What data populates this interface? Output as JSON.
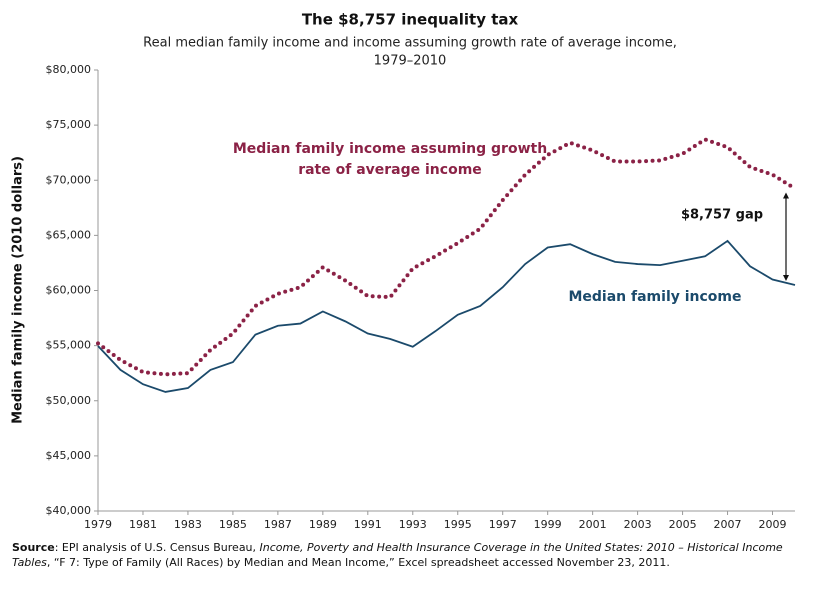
{
  "chart_data": {
    "type": "line",
    "title": "The $8,757 inequality tax",
    "subtitle": [
      "Real median family income and income assuming growth rate of average income,",
      "1979–2010"
    ],
    "y_label": "Median family income (2010 dollars)",
    "x": [
      1979,
      1980,
      1981,
      1982,
      1983,
      1984,
      1985,
      1986,
      1987,
      1988,
      1989,
      1990,
      1991,
      1992,
      1993,
      1994,
      1995,
      1996,
      1997,
      1998,
      1999,
      2000,
      2001,
      2002,
      2003,
      2004,
      2005,
      2006,
      2007,
      2008,
      2009,
      2010
    ],
    "xlim": [
      1979,
      2010
    ],
    "xticks": [
      1979,
      1981,
      1983,
      1985,
      1987,
      1989,
      1991,
      1993,
      1995,
      1997,
      1999,
      2001,
      2003,
      2005,
      2007,
      2009
    ],
    "ylim": [
      40000,
      80000
    ],
    "yticks": [
      {
        "value": 40000,
        "label": "$40,000"
      },
      {
        "value": 45000,
        "label": "$45,000"
      },
      {
        "value": 50000,
        "label": "$50,000"
      },
      {
        "value": 55000,
        "label": "$55,000"
      },
      {
        "value": 60000,
        "label": "$60,000"
      },
      {
        "value": 65000,
        "label": "$65,000"
      },
      {
        "value": 70000,
        "label": "$70,000"
      },
      {
        "value": 75000,
        "label": "$75,000"
      },
      {
        "value": 80000,
        "label": "$80,000"
      }
    ],
    "grid": false,
    "series": [
      {
        "name": "Median family income",
        "color": "#1b4a6b",
        "style": "solid",
        "values": [
          54966,
          52800,
          51500,
          50800,
          51150,
          52800,
          53500,
          56000,
          56800,
          57000,
          58100,
          57200,
          56100,
          55600,
          54900,
          56300,
          57800,
          58600,
          60300,
          62400,
          63900,
          64200,
          63300,
          62600,
          62400,
          62300,
          62700,
          63100,
          64500,
          62200,
          61000,
          60500
        ]
      },
      {
        "name": "Median family income assuming growth rate of average income",
        "color": "#8b2246",
        "style": "dotted",
        "values": [
          55200,
          53700,
          52600,
          52400,
          52500,
          54600,
          56100,
          58600,
          59700,
          60300,
          62100,
          60900,
          59500,
          59400,
          62000,
          63100,
          64300,
          65600,
          68200,
          70500,
          72300,
          73400,
          72700,
          71700,
          71700,
          71800,
          72400,
          73700,
          73000,
          71200,
          70500,
          69257
        ]
      }
    ],
    "gap_label": "$8,757 gap",
    "source": [
      "Source",
      ": EPI analysis of U.S. Census Bureau, ",
      "Income, Poverty and Health Insurance Coverage in the United States: 2010 – Historical Income Tables",
      ", “F 7: Type of Family (All Races) by Median and Mean Income,” Excel spreadsheet accessed November 23, 2011."
    ]
  }
}
